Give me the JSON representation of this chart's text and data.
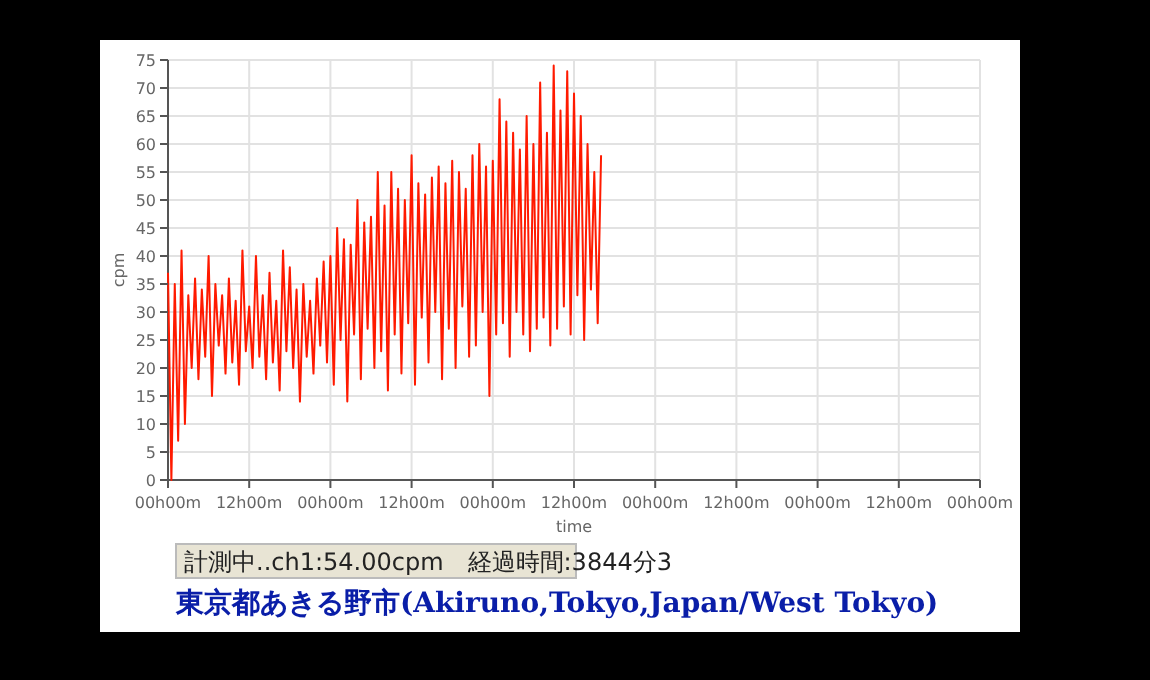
{
  "chart_data": {
    "type": "line",
    "xlabel": "time",
    "ylabel": "cpm",
    "annotations": [
      "計測中..ch1:54.00cpm　経過時間:3844分3",
      "東京都あきる野市(Akiruno,Tokyo,Japan/West Tokyo)"
    ],
    "categories": [
      "00h00m",
      null,
      null,
      null,
      null,
      null,
      null,
      null,
      null,
      null,
      null,
      null,
      null,
      null,
      null,
      null,
      null,
      null,
      null,
      null,
      null,
      null,
      null,
      null,
      "12h00m",
      null,
      null,
      null,
      null,
      null,
      null,
      null,
      null,
      null,
      null,
      null,
      null,
      null,
      null,
      null,
      null,
      null,
      null,
      null,
      null,
      null,
      null,
      null,
      "00h00m",
      null,
      null,
      null,
      null,
      null,
      null,
      null,
      null,
      null,
      null,
      null,
      null,
      null,
      null,
      null,
      null,
      null,
      null,
      null,
      null,
      null,
      null,
      null,
      "12h00m",
      null,
      null,
      null,
      null,
      null,
      null,
      null,
      null,
      null,
      null,
      null,
      null,
      null,
      null,
      null,
      null,
      null,
      null,
      null,
      null,
      null,
      null,
      null,
      "00h00m",
      null,
      null,
      null,
      null,
      null,
      null,
      null,
      null,
      null,
      null,
      null,
      null,
      null,
      null,
      null,
      null,
      null,
      null,
      null,
      null,
      null,
      null,
      null,
      "12h00m",
      null,
      null,
      null,
      null,
      null,
      null,
      null,
      null,
      null,
      null,
      null,
      null,
      null,
      null,
      null,
      null,
      null,
      null,
      null,
      null,
      null,
      null,
      null,
      "00h00m",
      null,
      null,
      null,
      null,
      null,
      null,
      null,
      null,
      null,
      null,
      null,
      null,
      null,
      null,
      null,
      null,
      null,
      null,
      null,
      null,
      null,
      null,
      null,
      "12h00m",
      null,
      null,
      null,
      null,
      null,
      null,
      null,
      null,
      null,
      null,
      null,
      null,
      null,
      null,
      null,
      null,
      null,
      null,
      null,
      null,
      null,
      null,
      null,
      "00h00m",
      null,
      null,
      null,
      null,
      null,
      null,
      null,
      null,
      null,
      null,
      null,
      null,
      null,
      null,
      null,
      null,
      null,
      null,
      null,
      null,
      null,
      null,
      null,
      "12h00m",
      null,
      null,
      null,
      null,
      null,
      null,
      null,
      null,
      null,
      null,
      null,
      null,
      null,
      null,
      null,
      null,
      null,
      null,
      null,
      null,
      null,
      null,
      null,
      "00h00m"
    ],
    "series": [
      {
        "color": "#ff1a00",
        "values": [
          37,
          0,
          35,
          7,
          41,
          10,
          33,
          20,
          36,
          18,
          34,
          22,
          40,
          15,
          35,
          24,
          33,
          19,
          36,
          21,
          32,
          17,
          41,
          23,
          31,
          20,
          40,
          22,
          33,
          18,
          37,
          21,
          32,
          16,
          41,
          23,
          38,
          20,
          34,
          14,
          35,
          22,
          32,
          19,
          36,
          24,
          39,
          21,
          40,
          17,
          45,
          25,
          43,
          14,
          42,
          26,
          50,
          18,
          46,
          27,
          47,
          20,
          55,
          23,
          49,
          16,
          55,
          26,
          52,
          19,
          50,
          28,
          58,
          17,
          53,
          29,
          51,
          21,
          54,
          30,
          56,
          18,
          53,
          27,
          57,
          20,
          55,
          31,
          52,
          22,
          58,
          24,
          60,
          30,
          56,
          15,
          57,
          26,
          68,
          28,
          64,
          22,
          62,
          30,
          59,
          26,
          65,
          23,
          60,
          27,
          71,
          29,
          62,
          24,
          74,
          27,
          66,
          31,
          73,
          26,
          69,
          33,
          65,
          25,
          60,
          34,
          55,
          28,
          58,
          null,
          null,
          null,
          null,
          null,
          null,
          null,
          null,
          null,
          null,
          null,
          null,
          null,
          null,
          null,
          null,
          null,
          null,
          null,
          null,
          null,
          null,
          null,
          null,
          null,
          null,
          null,
          null,
          null,
          null,
          null,
          null,
          null,
          null,
          null,
          null,
          null,
          null,
          null,
          null,
          null,
          null,
          null,
          null,
          null,
          null,
          null,
          null,
          null,
          null,
          null,
          null,
          null,
          null,
          null,
          null,
          null,
          null,
          null,
          null,
          null,
          null,
          null,
          null,
          null,
          null,
          null,
          null,
          null,
          null,
          null,
          null,
          null,
          null,
          null,
          null,
          null,
          null,
          null,
          null,
          null,
          null,
          null,
          null,
          null,
          null,
          null,
          null,
          null,
          null,
          null,
          null,
          null,
          null,
          null,
          null,
          null,
          null,
          null,
          null,
          null,
          null,
          null,
          null,
          null,
          null,
          null,
          null,
          null,
          null,
          null,
          null
        ]
      }
    ],
    "ylim": [
      0,
      75
    ],
    "yticks": [
      0,
      5,
      10,
      15,
      20,
      25,
      30,
      35,
      40,
      45,
      50,
      55,
      60,
      65,
      70,
      75
    ],
    "grid": true,
    "marker": "none",
    "line_style": "solid"
  }
}
